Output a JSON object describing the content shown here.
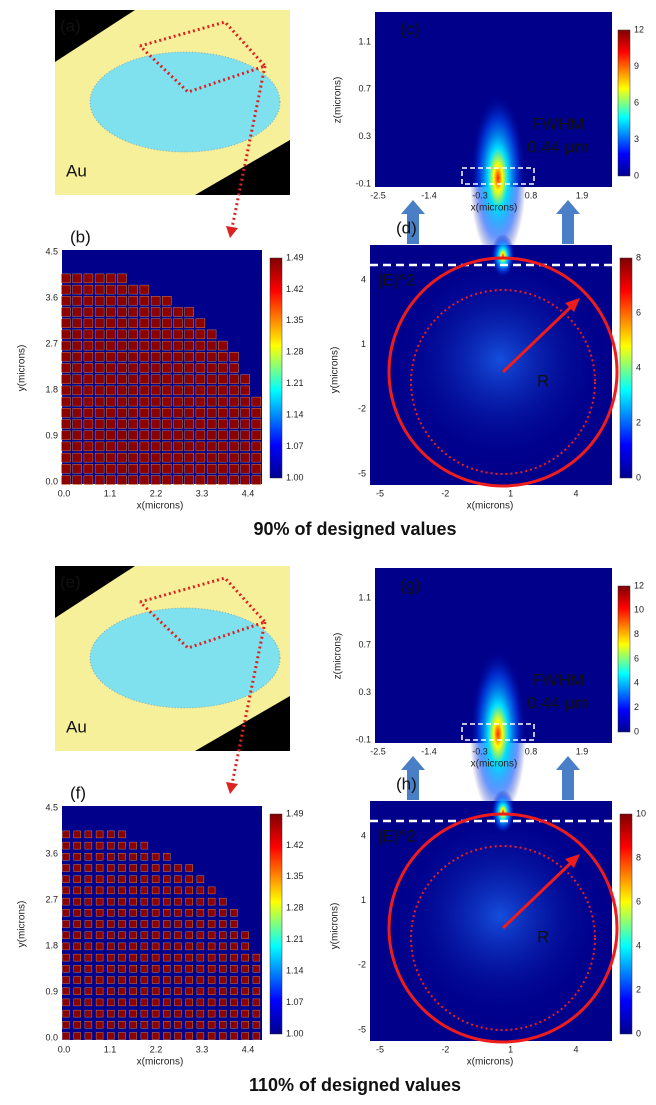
{
  "figure": {
    "groups": [
      {
        "caption": "90% of designed values",
        "a": {
          "label": "(a)",
          "material": "Au"
        },
        "b": {
          "label": "(b)",
          "ylabel": "y(microns)",
          "xlabel": "x(microns)",
          "yticks": [
            "4.5",
            "3.6",
            "2.7",
            "1.8",
            "0.9",
            "0.0"
          ],
          "xticks": [
            "0.0",
            "1.1",
            "2.2",
            "3.3",
            "4.4"
          ],
          "cbar": [
            "1.49",
            "1.42",
            "1.35",
            "1.28",
            "1.21",
            "1.14",
            "1.07",
            "1.00"
          ]
        },
        "c": {
          "label": "(c)",
          "ylabel": "z(microns)",
          "xlabel": "x(microns)",
          "yticks": [
            "1.1",
            "0.7",
            "0.3",
            "-0.1"
          ],
          "xticks": [
            "-2.5",
            "-1.4",
            "-0.3",
            "0.8",
            "1.9"
          ],
          "cbar": [
            "12",
            "9",
            "6",
            "3",
            "0"
          ],
          "fwhm_title": "FWHM",
          "fwhm_value": "0.44 μm"
        },
        "d": {
          "label": "(d)",
          "ylabel": "y(microns)",
          "xlabel": "x(microns)",
          "yticks": [
            "4",
            "1",
            "-2",
            "-5"
          ],
          "xticks": [
            "-5",
            "-2",
            "1",
            "4"
          ],
          "cbar": [
            "8",
            "6",
            "4",
            "2",
            "0"
          ],
          "field_label": "|E|^2",
          "radius_label": "R"
        }
      },
      {
        "caption": "110% of designed values",
        "a": {
          "label": "(e)",
          "material": "Au"
        },
        "b": {
          "label": "(f)",
          "ylabel": "y(microns)",
          "xlabel": "x(microns)",
          "yticks": [
            "4.5",
            "3.6",
            "2.7",
            "1.8",
            "0.9",
            "0.0"
          ],
          "xticks": [
            "0.0",
            "1.1",
            "2.2",
            "3.3",
            "4.4"
          ],
          "cbar": [
            "1.49",
            "1.42",
            "1.35",
            "1.28",
            "1.21",
            "1.14",
            "1.07",
            "1.00"
          ]
        },
        "c": {
          "label": "(g)",
          "ylabel": "z(microns)",
          "xlabel": "x(microns)",
          "yticks": [
            "1.1",
            "0.7",
            "0.3",
            "-0.1"
          ],
          "xticks": [
            "-2.5",
            "-1.4",
            "-0.3",
            "0.8",
            "1.9"
          ],
          "cbar": [
            "12",
            "10",
            "8",
            "6",
            "4",
            "2",
            "0"
          ],
          "fwhm_title": "FWHM",
          "fwhm_value": "0.44 μm"
        },
        "d": {
          "label": "(h)",
          "ylabel": "y(microns)",
          "xlabel": "x(microns)",
          "yticks": [
            "4",
            "1",
            "-2",
            "-5"
          ],
          "xticks": [
            "-5",
            "-2",
            "1",
            "4"
          ],
          "cbar": [
            "10",
            "8",
            "6",
            "4",
            "2",
            "0"
          ],
          "field_label": "|E|^2",
          "radius_label": "R"
        }
      }
    ]
  }
}
